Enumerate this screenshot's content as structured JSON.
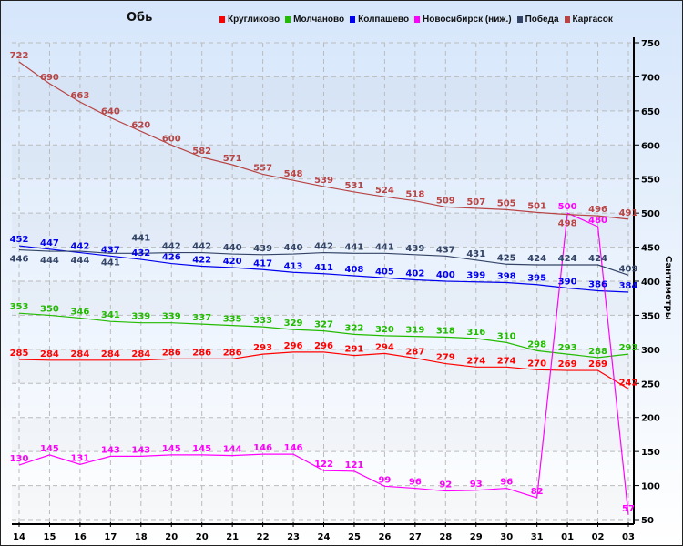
{
  "chart_data": {
    "type": "line",
    "title": "Обь",
    "ylabel": "Сантиметры",
    "xlabel": "",
    "ylim": [
      50,
      750
    ],
    "yticks": [
      50,
      100,
      150,
      200,
      250,
      300,
      350,
      400,
      450,
      500,
      550,
      600,
      650,
      700,
      750
    ],
    "grid": true,
    "legend_position": "top",
    "categories": [
      "14",
      "15",
      "16",
      "17",
      "18",
      "20",
      "20",
      "21",
      "22",
      "23",
      "24",
      "25",
      "26",
      "27",
      "28",
      "29",
      "30",
      "31",
      "01",
      "02",
      "03"
    ],
    "series": [
      {
        "name": "Кругликово",
        "color": "#ff0000",
        "values": [
          285,
          284,
          284,
          284,
          284,
          286,
          286,
          286,
          293,
          296,
          296,
          291,
          294,
          287,
          279,
          274,
          274,
          270,
          269,
          269,
          242
        ]
      },
      {
        "name": "Молчаново",
        "color": "#22bb00",
        "values": [
          353,
          350,
          346,
          341,
          339,
          339,
          337,
          335,
          333,
          329,
          327,
          322,
          320,
          319,
          318,
          316,
          310,
          298,
          293,
          288,
          293
        ]
      },
      {
        "name": "Колпашево",
        "color": "#0000ee",
        "values": [
          452,
          447,
          442,
          437,
          432,
          426,
          422,
          420,
          417,
          413,
          411,
          408,
          405,
          402,
          400,
          399,
          398,
          395,
          390,
          386,
          384
        ]
      },
      {
        "name": "Новосибирск (ниж.)",
        "color": "#ff00ff",
        "values": [
          130,
          145,
          131,
          143,
          143,
          145,
          145,
          144,
          146,
          146,
          122,
          121,
          99,
          96,
          92,
          93,
          96,
          82,
          500,
          480,
          57
        ]
      },
      {
        "name": "Победа",
        "color": "#334466",
        "values": [
          446,
          444,
          444,
          441,
          441,
          442,
          442,
          440,
          439,
          440,
          442,
          441,
          441,
          439,
          437,
          431,
          425,
          424,
          424,
          424,
          409
        ]
      },
      {
        "name": "Каргасок",
        "color": "#b84444",
        "values": [
          722,
          690,
          663,
          640,
          620,
          600,
          582,
          571,
          557,
          548,
          539,
          531,
          524,
          518,
          509,
          507,
          505,
          501,
          498,
          496,
          491
        ]
      }
    ]
  }
}
